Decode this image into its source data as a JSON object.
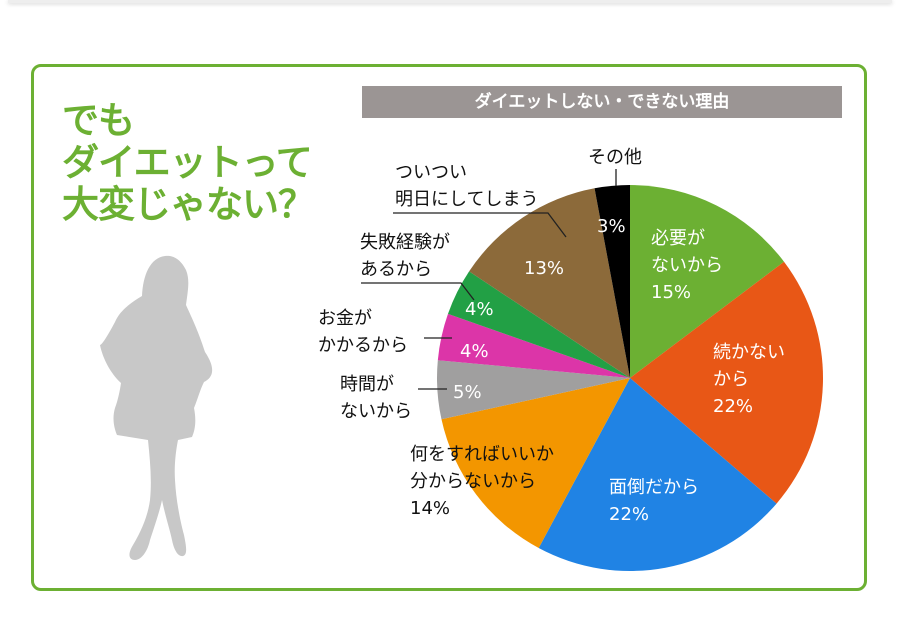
{
  "headline": {
    "lines": [
      "でも",
      "ダイエットって",
      "大変じゃない？"
    ],
    "color": "#6cb033"
  },
  "frame": {
    "border_color": "#6cb033"
  },
  "chart_data": {
    "type": "pie",
    "title": "ダイエットしない・できない理由",
    "start_angle": "12 o'clock",
    "direction": "clockwise",
    "categories": [
      "必要がないから",
      "続かないから",
      "面倒だから",
      "何をすればいいか分からないから",
      "時間がないから",
      "お金がかかるから",
      "失敗経験があるから",
      "ついつい明日にしてしまう",
      "その他"
    ],
    "values": [
      15,
      22,
      22,
      14,
      5,
      4,
      4,
      13,
      3
    ],
    "unit": "%",
    "colors": [
      "#6cb033",
      "#e85716",
      "#2083e4",
      "#f39600",
      "#a09f9f",
      "#dc35a8",
      "#22a045",
      "#8c6a3a",
      "#000000"
    ],
    "slices": [
      {
        "label_lines": [
          "必要が",
          "ないから"
        ],
        "pct": "15%",
        "label_inside": true
      },
      {
        "label_lines": [
          "続かない",
          "から"
        ],
        "pct": "22%",
        "label_inside": true
      },
      {
        "label_lines": [
          "面倒だから"
        ],
        "pct": "22%",
        "label_inside": true
      },
      {
        "label_lines": [
          "何をすればいいか",
          "分からないから"
        ],
        "pct": "14%",
        "label_inside": false
      },
      {
        "label_lines": [
          "時間が",
          "ないから"
        ],
        "pct": "5%",
        "label_inside": false
      },
      {
        "label_lines": [
          "お金が",
          "かかるから"
        ],
        "pct": "4%",
        "label_inside": false
      },
      {
        "label_lines": [
          "失敗経験が",
          "あるから"
        ],
        "pct": "4%",
        "label_inside": false
      },
      {
        "label_lines": [
          "ついつい",
          "明日にしてしまう"
        ],
        "pct": "13%",
        "label_inside": false
      },
      {
        "label_lines": [
          "その他"
        ],
        "pct": "3%",
        "label_inside": false
      }
    ],
    "legend": "none (callout labels)"
  }
}
